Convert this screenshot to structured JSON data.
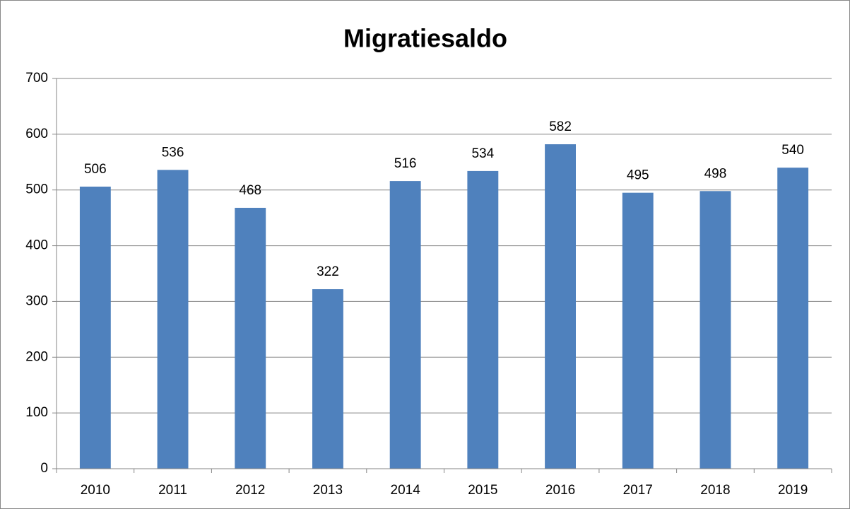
{
  "chart_data": {
    "type": "bar",
    "title": "Migratiesaldo",
    "categories": [
      "2010",
      "2011",
      "2012",
      "2013",
      "2014",
      "2015",
      "2016",
      "2017",
      "2018",
      "2019"
    ],
    "values": [
      506,
      536,
      468,
      322,
      516,
      534,
      582,
      495,
      498,
      540
    ],
    "color": "#4f81bd",
    "ylim": [
      0,
      700
    ],
    "yticks": [
      0,
      100,
      200,
      300,
      400,
      500,
      600,
      700
    ],
    "grid": true
  }
}
